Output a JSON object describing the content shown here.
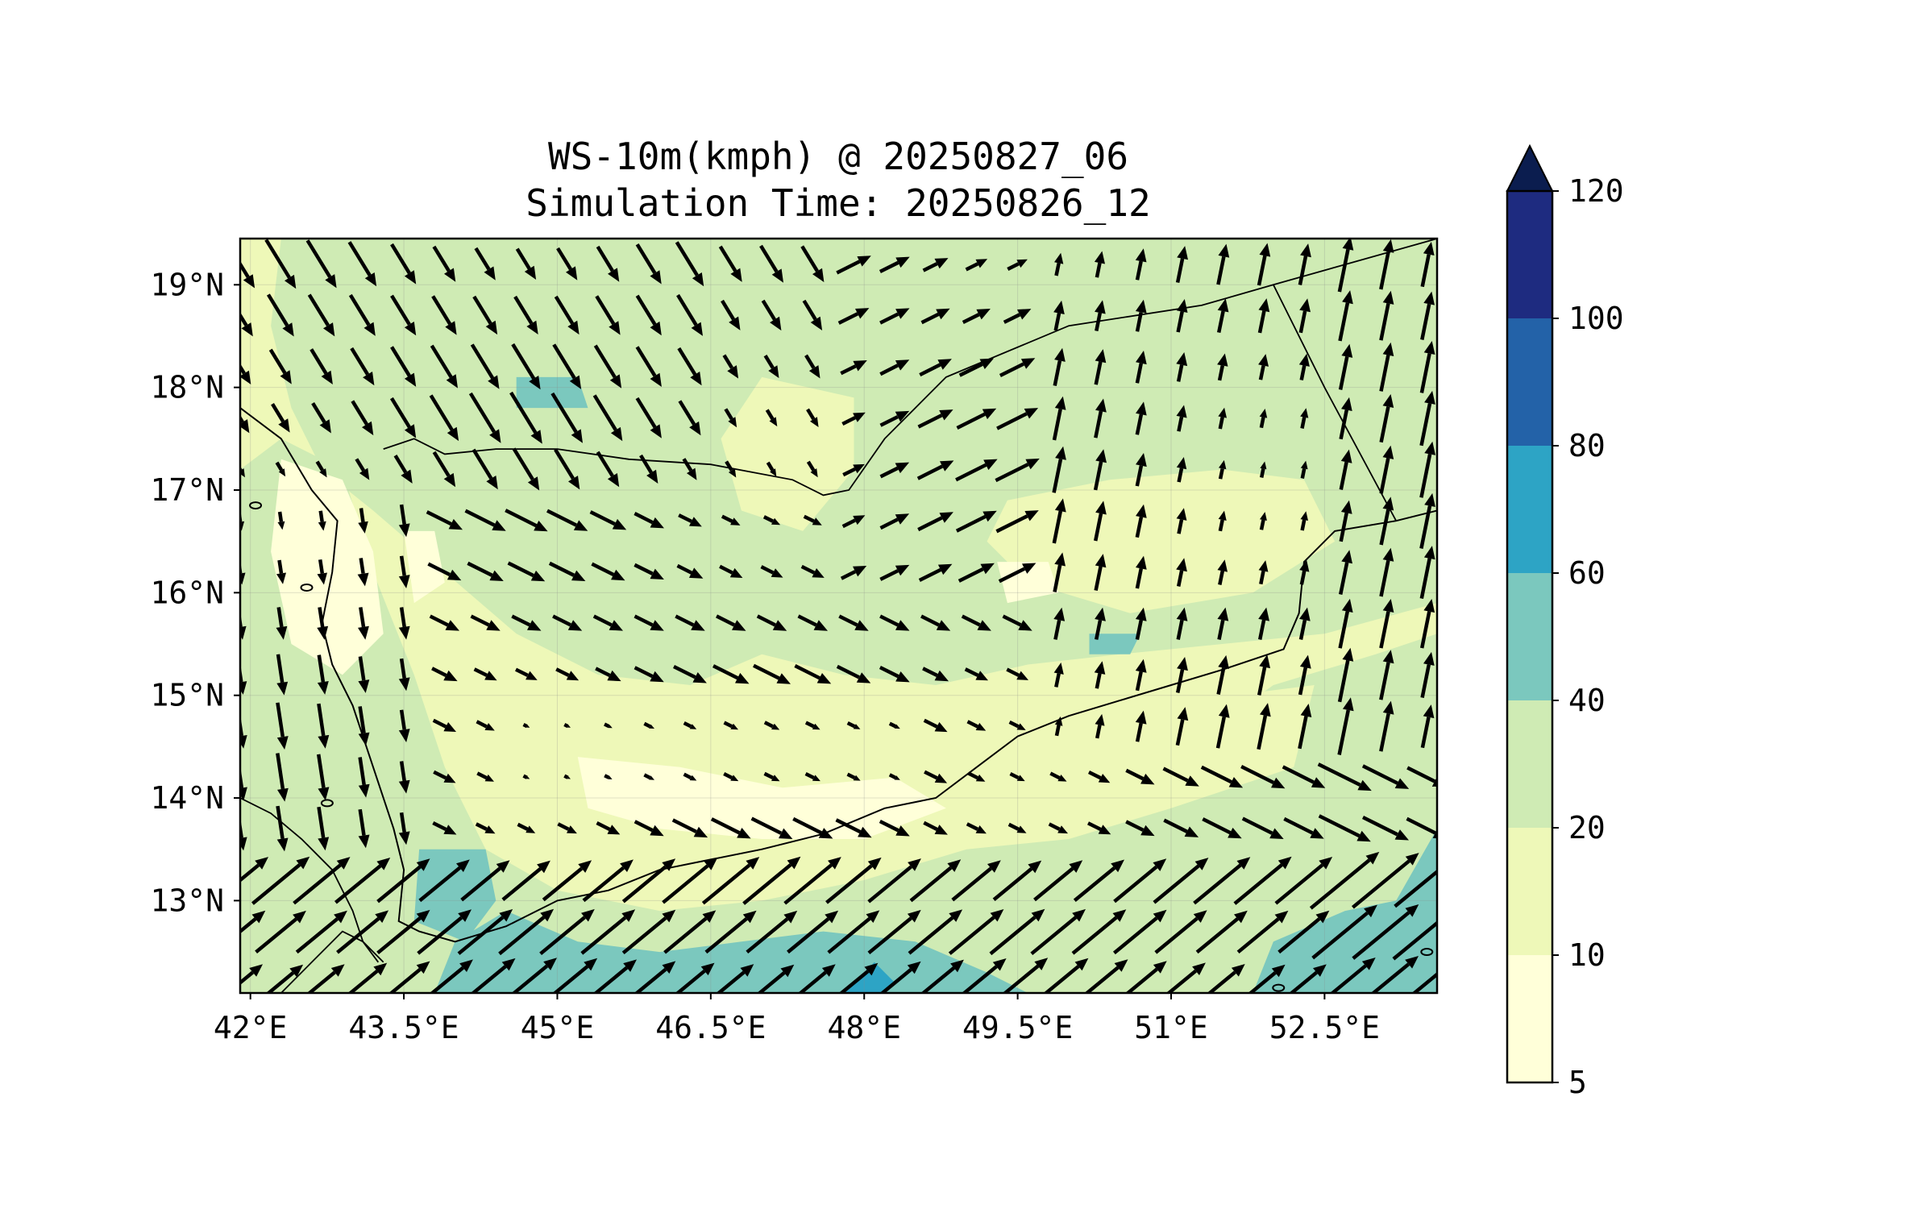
{
  "title": {
    "line1": "WS-10m(kmph) @ 20250827_06",
    "line2": "Simulation Time: 20250826_12"
  },
  "colors": {
    "c5_10": "#ffffd9",
    "c10_20": "#eef8b8",
    "c20_40": "#cfebb4",
    "c40_60": "#7bc8be",
    "c60_80": "#2da4c5",
    "c80_100": "#2362a8",
    "c100_120": "#1e2b80",
    "over120": "#0b1d4f"
  },
  "chart_data": {
    "type": "filled-contour-with-wind-vectors",
    "variable": "10 m wind speed",
    "units": "kmph",
    "lon_range": [
      41.9,
      53.6
    ],
    "lat_range": [
      12.1,
      19.45
    ],
    "x_ticks": [
      {
        "value": 42.0,
        "label": "42°E"
      },
      {
        "value": 43.5,
        "label": "43.5°E"
      },
      {
        "value": 45.0,
        "label": "45°E"
      },
      {
        "value": 46.5,
        "label": "46.5°E"
      },
      {
        "value": 48.0,
        "label": "48°E"
      },
      {
        "value": 49.5,
        "label": "49.5°E"
      },
      {
        "value": 51.0,
        "label": "51°E"
      },
      {
        "value": 52.5,
        "label": "52.5°E"
      }
    ],
    "y_ticks": [
      {
        "value": 19,
        "label": "19°N"
      },
      {
        "value": 18,
        "label": "18°N"
      },
      {
        "value": 17,
        "label": "17°N"
      },
      {
        "value": 16,
        "label": "16°N"
      },
      {
        "value": 15,
        "label": "15°N"
      },
      {
        "value": 14,
        "label": "14°N"
      },
      {
        "value": 13,
        "label": "13°N"
      }
    ],
    "colorbar": {
      "levels": [
        5,
        10,
        20,
        40,
        60,
        80,
        100,
        120
      ],
      "labels": [
        "5",
        "10",
        "20",
        "40",
        "60",
        "80",
        "100",
        "120"
      ],
      "extend": "max"
    },
    "regions": [
      {
        "level": "c10_20",
        "points": [
          [
            41.9,
            19.45
          ],
          [
            53.6,
            19.45
          ],
          [
            53.6,
            12.1
          ],
          [
            41.9,
            12.1
          ]
        ]
      },
      {
        "level": "c20_40",
        "points": [
          [
            42.3,
            19.45
          ],
          [
            53.6,
            19.45
          ],
          [
            53.6,
            15.9
          ],
          [
            52.5,
            15.6
          ],
          [
            51.5,
            15.5
          ],
          [
            50.5,
            15.4
          ],
          [
            49.6,
            15.3
          ],
          [
            48.7,
            15.1
          ],
          [
            47.8,
            15.2
          ],
          [
            47.0,
            15.4
          ],
          [
            46.3,
            15.1
          ],
          [
            45.4,
            15.2
          ],
          [
            44.6,
            15.6
          ],
          [
            43.9,
            16.2
          ],
          [
            43.2,
            16.8
          ],
          [
            42.7,
            17.2
          ],
          [
            42.4,
            17.8
          ],
          [
            42.2,
            18.6
          ]
        ]
      },
      {
        "level": "c20_40",
        "points": [
          [
            42.3,
            17.5
          ],
          [
            42.9,
            17.2
          ],
          [
            43.2,
            16.2
          ],
          [
            43.6,
            15.2
          ],
          [
            43.9,
            14.3
          ],
          [
            44.3,
            13.5
          ],
          [
            45.0,
            13.1
          ],
          [
            46.0,
            13.0
          ],
          [
            47.0,
            13.3
          ],
          [
            48.0,
            13.5
          ],
          [
            49.0,
            13.8
          ],
          [
            50.0,
            14.1
          ],
          [
            51.0,
            14.4
          ],
          [
            52.0,
            15.1
          ],
          [
            53.0,
            15.4
          ],
          [
            53.6,
            15.6
          ],
          [
            53.6,
            12.1
          ],
          [
            41.9,
            12.1
          ],
          [
            41.9,
            17.2
          ]
        ]
      },
      {
        "level": "c10_20",
        "points": [
          [
            44.0,
            15.7
          ],
          [
            45.2,
            15.2
          ],
          [
            46.4,
            14.9
          ],
          [
            47.6,
            14.7
          ],
          [
            48.9,
            14.8
          ],
          [
            49.8,
            15.1
          ],
          [
            50.6,
            15.2
          ],
          [
            51.6,
            15.0
          ],
          [
            52.4,
            15.1
          ],
          [
            52.2,
            14.3
          ],
          [
            51.0,
            13.9
          ],
          [
            50.0,
            13.6
          ],
          [
            49.0,
            13.5
          ],
          [
            48.0,
            13.2
          ],
          [
            47.0,
            13.0
          ],
          [
            46.0,
            12.9
          ],
          [
            45.0,
            13.1
          ],
          [
            44.3,
            13.7
          ],
          [
            44.0,
            14.6
          ]
        ]
      },
      {
        "level": "c10_20",
        "points": [
          [
            49.4,
            16.9
          ],
          [
            50.4,
            17.1
          ],
          [
            51.5,
            17.2
          ],
          [
            52.3,
            17.1
          ],
          [
            52.6,
            16.5
          ],
          [
            51.8,
            16.0
          ],
          [
            50.6,
            15.8
          ],
          [
            49.6,
            16.1
          ],
          [
            49.2,
            16.5
          ]
        ]
      },
      {
        "level": "c10_20",
        "points": [
          [
            47.0,
            18.1
          ],
          [
            47.9,
            17.9
          ],
          [
            47.9,
            17.2
          ],
          [
            47.4,
            16.6
          ],
          [
            46.8,
            16.8
          ],
          [
            46.6,
            17.5
          ]
        ]
      },
      {
        "level": "c5_10",
        "points": [
          [
            42.3,
            17.3
          ],
          [
            42.9,
            17.1
          ],
          [
            43.2,
            16.4
          ],
          [
            43.3,
            15.6
          ],
          [
            42.9,
            15.2
          ],
          [
            42.4,
            15.5
          ],
          [
            42.2,
            16.4
          ]
        ]
      },
      {
        "level": "c5_10",
        "points": [
          [
            43.5,
            16.6
          ],
          [
            43.8,
            16.6
          ],
          [
            43.9,
            16.1
          ],
          [
            43.6,
            15.9
          ]
        ]
      },
      {
        "level": "c5_10",
        "points": [
          [
            45.2,
            14.4
          ],
          [
            46.2,
            14.3
          ],
          [
            47.2,
            14.1
          ],
          [
            48.3,
            14.2
          ],
          [
            48.8,
            13.9
          ],
          [
            48.0,
            13.6
          ],
          [
            47.0,
            13.6
          ],
          [
            46.0,
            13.7
          ],
          [
            45.3,
            13.9
          ]
        ]
      },
      {
        "level": "c5_10",
        "points": [
          [
            49.3,
            16.3
          ],
          [
            49.8,
            16.3
          ],
          [
            49.9,
            16.0
          ],
          [
            49.4,
            15.9
          ]
        ]
      },
      {
        "level": "c40_60",
        "points": [
          [
            43.8,
            12.1
          ],
          [
            44.0,
            12.6
          ],
          [
            44.5,
            12.9
          ],
          [
            45.2,
            12.6
          ],
          [
            46.0,
            12.5
          ],
          [
            46.8,
            12.6
          ],
          [
            47.6,
            12.7
          ],
          [
            48.5,
            12.6
          ],
          [
            49.2,
            12.3
          ],
          [
            49.6,
            12.1
          ]
        ]
      },
      {
        "level": "c40_60",
        "points": [
          [
            43.65,
            13.5
          ],
          [
            44.3,
            13.5
          ],
          [
            44.4,
            13.0
          ],
          [
            44.1,
            12.6
          ],
          [
            43.6,
            12.8
          ]
        ]
      },
      {
        "level": "c40_60",
        "points": [
          [
            51.8,
            12.1
          ],
          [
            52.0,
            12.6
          ],
          [
            52.7,
            12.9
          ],
          [
            53.2,
            13.0
          ],
          [
            53.6,
            13.7
          ],
          [
            53.6,
            12.1
          ]
        ]
      },
      {
        "level": "c40_60",
        "points": [
          [
            44.6,
            18.1
          ],
          [
            45.2,
            18.1
          ],
          [
            45.3,
            17.8
          ],
          [
            44.6,
            17.8
          ]
        ]
      },
      {
        "level": "c40_60",
        "points": [
          [
            50.2,
            15.6
          ],
          [
            50.7,
            15.6
          ],
          [
            50.6,
            15.4
          ],
          [
            50.2,
            15.4
          ]
        ]
      },
      {
        "level": "c60_80",
        "points": [
          [
            47.8,
            12.1
          ],
          [
            48.1,
            12.4
          ],
          [
            48.3,
            12.2
          ],
          [
            48.2,
            12.1
          ]
        ]
      }
    ],
    "coastline": [
      [
        41.9,
        17.8
      ],
      [
        42.3,
        17.5
      ],
      [
        42.6,
        17.0
      ],
      [
        42.85,
        16.7
      ],
      [
        42.8,
        16.2
      ],
      [
        42.7,
        15.7
      ],
      [
        42.8,
        15.3
      ],
      [
        43.0,
        14.9
      ],
      [
        43.2,
        14.3
      ],
      [
        43.4,
        13.7
      ],
      [
        43.5,
        13.3
      ],
      [
        43.45,
        12.8
      ],
      [
        43.65,
        12.7
      ],
      [
        44.0,
        12.6
      ],
      [
        44.5,
        12.75
      ],
      [
        45.0,
        13.0
      ],
      [
        45.5,
        13.1
      ],
      [
        46.0,
        13.3
      ],
      [
        46.5,
        13.4
      ],
      [
        47.0,
        13.5
      ],
      [
        47.6,
        13.65
      ],
      [
        48.2,
        13.9
      ],
      [
        48.7,
        14.0
      ],
      [
        49.1,
        14.3
      ],
      [
        49.5,
        14.6
      ],
      [
        50.0,
        14.8
      ],
      [
        50.5,
        14.95
      ],
      [
        51.0,
        15.1
      ],
      [
        51.5,
        15.25
      ],
      [
        52.1,
        15.45
      ],
      [
        52.25,
        15.8
      ],
      [
        52.3,
        16.3
      ],
      [
        52.6,
        16.6
      ],
      [
        53.2,
        16.7
      ],
      [
        53.6,
        16.8
      ]
    ],
    "borders": [
      [
        [
          43.3,
          17.4
        ],
        [
          43.6,
          17.5
        ],
        [
          43.9,
          17.35
        ],
        [
          44.4,
          17.4
        ],
        [
          45.0,
          17.4
        ],
        [
          45.7,
          17.3
        ],
        [
          46.5,
          17.25
        ],
        [
          47.3,
          17.1
        ],
        [
          47.6,
          16.95
        ],
        [
          47.85,
          17.0
        ],
        [
          48.2,
          17.5
        ],
        [
          48.8,
          18.1
        ],
        [
          50.0,
          18.6
        ],
        [
          51.3,
          18.8
        ],
        [
          52.0,
          19.0
        ],
        [
          53.6,
          19.45
        ]
      ],
      [
        [
          52.0,
          19.0
        ],
        [
          52.5,
          18.0
        ],
        [
          53.2,
          16.7
        ]
      ],
      [
        [
          41.9,
          14.0
        ],
        [
          42.2,
          13.85
        ],
        [
          42.5,
          13.6
        ],
        [
          42.8,
          13.3
        ],
        [
          43.0,
          12.9
        ],
        [
          43.1,
          12.6
        ],
        [
          43.25,
          12.4
        ]
      ],
      [
        [
          42.3,
          12.1
        ],
        [
          42.6,
          12.4
        ],
        [
          42.9,
          12.7
        ],
        [
          43.1,
          12.6
        ],
        [
          43.3,
          12.4
        ]
      ]
    ],
    "islands": [
      {
        "lon": 42.05,
        "lat": 16.85,
        "label": ""
      },
      {
        "lon": 42.55,
        "lat": 16.05,
        "label": ""
      },
      {
        "lon": 42.75,
        "lat": 13.95,
        "label": ""
      },
      {
        "lon": 52.05,
        "lat": 12.15,
        "label": ""
      },
      {
        "lon": 53.5,
        "lat": 12.5,
        "label": ""
      }
    ],
    "wind_vectors": {
      "units": "kmph",
      "lons": [
        41.9,
        42.3,
        42.7,
        43.1,
        43.5,
        43.9,
        44.3,
        44.7,
        45.1,
        45.5,
        45.9,
        46.3,
        46.7,
        47.1,
        47.5,
        47.9,
        48.3,
        48.7,
        49.1,
        49.5,
        49.9,
        50.3,
        50.7,
        51.1,
        51.5,
        51.9,
        52.3,
        52.7,
        53.1,
        53.5
      ],
      "lats": [
        19.2,
        18.7,
        18.2,
        17.7,
        17.2,
        16.7,
        16.2,
        15.7,
        15.2,
        14.7,
        14.2,
        13.7,
        13.2,
        12.7,
        12.2
      ]
    }
  }
}
